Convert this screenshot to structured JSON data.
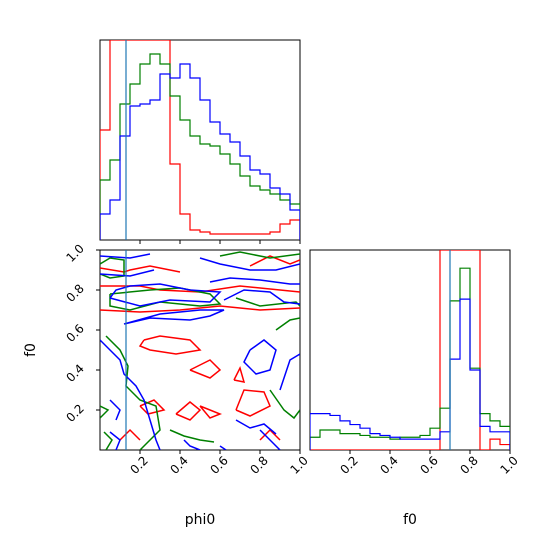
{
  "chart_data": {
    "type": "corner",
    "parameters": [
      "phi0",
      "f0"
    ],
    "colors": [
      "#ff0000",
      "#008000",
      "#0000ff"
    ],
    "truth_color": "#1f77b4",
    "truths": {
      "phi0": 0.13,
      "f0": 0.7
    },
    "xlabel_phi0": "phi0",
    "xlabel_f0": "f0",
    "ylabel_f0": "f0",
    "range_phi0": [
      0,
      1
    ],
    "range_f0": [
      0,
      1
    ],
    "ticks_phi0": [
      0.2,
      0.4,
      0.6,
      0.8,
      1.0
    ],
    "tick_labels_phi0": [
      "0.2",
      "0.4",
      "0.6",
      "0.8",
      "1.0"
    ],
    "ticks_f0": [
      0.2,
      0.4,
      0.6,
      0.8,
      1.0
    ],
    "tick_labels_f0": [
      "0.2",
      "0.4",
      "0.6",
      "0.8",
      "1.0"
    ],
    "hist_phi0": {
      "bin_edges": [
        0,
        0.05,
        0.1,
        0.15,
        0.2,
        0.25,
        0.3,
        0.35,
        0.4,
        0.45,
        0.5,
        0.55,
        0.6,
        0.65,
        0.7,
        0.75,
        0.8,
        0.85,
        0.9,
        0.95,
        1.0
      ],
      "ylim": [
        0,
        1
      ],
      "series": [
        {
          "values": [
            0.55,
            1.0,
            1.0,
            1.0,
            1.0,
            1.0,
            1.0,
            0.38,
            0.13,
            0.05,
            0.04,
            0.03,
            0.03,
            0.03,
            0.03,
            0.03,
            0.03,
            0.04,
            0.08,
            0.1
          ]
        },
        {
          "values": [
            0.3,
            0.4,
            0.68,
            0.78,
            0.88,
            0.93,
            0.88,
            0.72,
            0.6,
            0.52,
            0.48,
            0.47,
            0.43,
            0.38,
            0.32,
            0.27,
            0.25,
            0.23,
            0.2,
            0.18
          ]
        },
        {
          "values": [
            0.13,
            0.2,
            0.52,
            0.67,
            0.68,
            0.7,
            0.83,
            0.81,
            0.88,
            0.81,
            0.7,
            0.59,
            0.53,
            0.49,
            0.42,
            0.35,
            0.33,
            0.26,
            0.23,
            0.15
          ]
        }
      ]
    },
    "hist_f0": {
      "bin_edges": [
        0,
        0.05,
        0.1,
        0.15,
        0.2,
        0.25,
        0.3,
        0.35,
        0.4,
        0.45,
        0.5,
        0.55,
        0.6,
        0.65,
        0.7,
        0.75,
        0.8,
        0.85,
        0.9,
        0.95,
        1.0
      ],
      "ylim": [
        0,
        1.1
      ],
      "series": [
        {
          "values": [
            0.0,
            0.0,
            0.0,
            0.0,
            0.0,
            0.0,
            0.0,
            0.0,
            0.0,
            0.0,
            0.0,
            0.0,
            0.0,
            1.1,
            1.1,
            1.1,
            1.1,
            0.0,
            0.06,
            0.03
          ]
        },
        {
          "values": [
            0.07,
            0.11,
            0.11,
            0.09,
            0.09,
            0.08,
            0.07,
            0.07,
            0.06,
            0.07,
            0.07,
            0.08,
            0.12,
            0.23,
            0.82,
            1.0,
            0.45,
            0.2,
            0.16,
            0.13
          ]
        },
        {
          "values": [
            0.2,
            0.2,
            0.19,
            0.16,
            0.14,
            0.12,
            0.09,
            0.08,
            0.07,
            0.06,
            0.06,
            0.06,
            0.06,
            0.1,
            0.5,
            0.83,
            0.44,
            0.13,
            0.1,
            0.1
          ]
        }
      ]
    },
    "contours_f0_vs_phi0": [
      {
        "series_index": 0,
        "lines": [
          [
            [
              0.0,
              0.91
            ],
            [
              0.12,
              0.89
            ],
            [
              0.15,
              0.9
            ],
            [
              0.25,
              0.92
            ],
            [
              0.35,
              0.9
            ],
            [
              0.4,
              0.89
            ]
          ],
          [
            [
              0.0,
              0.82
            ],
            [
              0.2,
              0.82
            ],
            [
              0.3,
              0.8
            ],
            [
              0.5,
              0.79
            ],
            [
              0.7,
              0.82
            ],
            [
              0.9,
              0.8
            ],
            [
              1.0,
              0.79
            ]
          ],
          [
            [
              0.0,
              0.7
            ],
            [
              0.2,
              0.69
            ],
            [
              0.4,
              0.7
            ],
            [
              0.6,
              0.72
            ],
            [
              0.8,
              0.7
            ],
            [
              1.0,
              0.71
            ]
          ],
          [
            [
              0.22,
              0.55
            ],
            [
              0.3,
              0.57
            ],
            [
              0.45,
              0.55
            ],
            [
              0.5,
              0.5
            ],
            [
              0.38,
              0.48
            ],
            [
              0.25,
              0.5
            ],
            [
              0.2,
              0.52
            ],
            [
              0.22,
              0.55
            ]
          ],
          [
            [
              0.45,
              0.4
            ],
            [
              0.55,
              0.45
            ],
            [
              0.6,
              0.4
            ],
            [
              0.55,
              0.36
            ],
            [
              0.45,
              0.4
            ]
          ],
          [
            [
              0.67,
              0.35
            ],
            [
              0.7,
              0.41
            ],
            [
              0.72,
              0.34
            ],
            [
              0.67,
              0.35
            ]
          ],
          [
            [
              0.68,
              0.2
            ],
            [
              0.72,
              0.3
            ],
            [
              0.82,
              0.29
            ],
            [
              0.85,
              0.22
            ],
            [
              0.75,
              0.17
            ],
            [
              0.68,
              0.2
            ]
          ],
          [
            [
              0.75,
              0.92
            ],
            [
              0.85,
              0.97
            ],
            [
              0.95,
              0.93
            ],
            [
              1.0,
              0.95
            ]
          ],
          [
            [
              0.2,
              0.22
            ],
            [
              0.27,
              0.25
            ],
            [
              0.32,
              0.2
            ],
            [
              0.24,
              0.18
            ],
            [
              0.2,
              0.22
            ]
          ],
          [
            [
              0.38,
              0.18
            ],
            [
              0.45,
              0.24
            ],
            [
              0.5,
              0.2
            ],
            [
              0.45,
              0.15
            ],
            [
              0.38,
              0.18
            ]
          ],
          [
            [
              0.5,
              0.22
            ],
            [
              0.55,
              0.2
            ],
            [
              0.6,
              0.18
            ],
            [
              0.55,
              0.16
            ],
            [
              0.5,
              0.22
            ]
          ],
          [
            [
              0.1,
              0.05
            ],
            [
              0.15,
              0.1
            ],
            [
              0.2,
              0.05
            ]
          ],
          [
            [
              0.8,
              0.05
            ],
            [
              0.85,
              0.1
            ],
            [
              0.9,
              0.05
            ]
          ]
        ]
      },
      {
        "series_index": 1,
        "lines": [
          [
            [
              0.0,
              0.93
            ],
            [
              0.05,
              0.96
            ],
            [
              0.12,
              0.95
            ],
            [
              0.12,
              0.87
            ],
            [
              0.05,
              0.86
            ],
            [
              0.0,
              0.88
            ]
          ],
          [
            [
              0.6,
              0.97
            ],
            [
              0.7,
              0.99
            ],
            [
              0.85,
              0.96
            ],
            [
              1.0,
              0.98
            ]
          ],
          [
            [
              0.05,
              0.78
            ],
            [
              0.25,
              0.8
            ],
            [
              0.4,
              0.81
            ],
            [
              0.55,
              0.78
            ],
            [
              0.6,
              0.73
            ],
            [
              0.5,
              0.72
            ],
            [
              0.3,
              0.74
            ],
            [
              0.15,
              0.7
            ],
            [
              0.05,
              0.72
            ],
            [
              0.05,
              0.78
            ]
          ],
          [
            [
              0.68,
              0.76
            ],
            [
              0.8,
              0.72
            ],
            [
              0.98,
              0.74
            ],
            [
              1.0,
              0.72
            ]
          ],
          [
            [
              0.03,
              0.57
            ],
            [
              0.1,
              0.5
            ],
            [
              0.14,
              0.42
            ],
            [
              0.13,
              0.32
            ],
            [
              0.2,
              0.25
            ],
            [
              0.28,
              0.22
            ],
            [
              0.3,
              0.1
            ],
            [
              0.25,
              0.05
            ],
            [
              0.2,
              0.0
            ]
          ],
          [
            [
              0.0,
              0.22
            ],
            [
              0.04,
              0.2
            ],
            [
              0.0,
              0.16
            ]
          ],
          [
            [
              0.02,
              0.09
            ],
            [
              0.06,
              0.05
            ],
            [
              0.03,
              0.0
            ]
          ],
          [
            [
              0.35,
              0.1
            ],
            [
              0.42,
              0.07
            ],
            [
              0.5,
              0.05
            ],
            [
              0.57,
              0.04
            ]
          ],
          [
            [
              0.88,
              0.6
            ],
            [
              0.95,
              0.65
            ],
            [
              1.0,
              0.66
            ]
          ],
          [
            [
              0.85,
              0.3
            ],
            [
              0.92,
              0.2
            ],
            [
              0.97,
              0.16
            ],
            [
              1.0,
              0.2
            ]
          ]
        ]
      },
      {
        "series_index": 2,
        "lines": [
          [
            [
              0.0,
              0.97
            ],
            [
              0.15,
              0.96
            ],
            [
              0.25,
              0.98
            ]
          ],
          [
            [
              0.0,
              0.88
            ],
            [
              0.15,
              0.87
            ],
            [
              0.27,
              0.9
            ]
          ],
          [
            [
              0.05,
              0.76
            ],
            [
              0.2,
              0.72
            ],
            [
              0.35,
              0.75
            ],
            [
              0.55,
              0.74
            ],
            [
              0.6,
              0.79
            ],
            [
              0.45,
              0.8
            ],
            [
              0.3,
              0.83
            ],
            [
              0.15,
              0.82
            ],
            [
              0.08,
              0.8
            ],
            [
              0.05,
              0.76
            ]
          ],
          [
            [
              0.12,
              0.63
            ],
            [
              0.25,
              0.66
            ],
            [
              0.45,
              0.65
            ],
            [
              0.55,
              0.67
            ],
            [
              0.62,
              0.7
            ],
            [
              0.5,
              0.7
            ],
            [
              0.3,
              0.68
            ],
            [
              0.12,
              0.63
            ]
          ],
          [
            [
              0.5,
              0.96
            ],
            [
              0.6,
              0.93
            ],
            [
              0.75,
              0.9
            ],
            [
              0.88,
              0.9
            ],
            [
              1.0,
              0.93
            ]
          ],
          [
            [
              0.55,
              0.84
            ],
            [
              0.65,
              0.86
            ],
            [
              0.8,
              0.85
            ],
            [
              0.95,
              0.83
            ],
            [
              1.0,
              0.83
            ]
          ],
          [
            [
              0.62,
              0.75
            ],
            [
              0.72,
              0.8
            ],
            [
              0.85,
              0.79
            ],
            [
              0.92,
              0.74
            ],
            [
              1.0,
              0.73
            ]
          ],
          [
            [
              0.0,
              0.55
            ],
            [
              0.05,
              0.5
            ],
            [
              0.1,
              0.45
            ],
            [
              0.12,
              0.38
            ],
            [
              0.18,
              0.32
            ],
            [
              0.22,
              0.25
            ],
            [
              0.25,
              0.15
            ],
            [
              0.28,
              0.05
            ],
            [
              0.3,
              0.0
            ]
          ],
          [
            [
              0.05,
              0.25
            ],
            [
              0.1,
              0.2
            ],
            [
              0.08,
              0.15
            ]
          ],
          [
            [
              0.05,
              0.09
            ],
            [
              0.1,
              0.05
            ],
            [
              0.08,
              0.0
            ]
          ],
          [
            [
              0.75,
              0.5
            ],
            [
              0.82,
              0.55
            ],
            [
              0.88,
              0.5
            ],
            [
              0.85,
              0.4
            ],
            [
              0.78,
              0.38
            ],
            [
              0.72,
              0.44
            ],
            [
              0.75,
              0.5
            ]
          ],
          [
            [
              0.68,
              0.15
            ],
            [
              0.75,
              0.11
            ],
            [
              0.82,
              0.13
            ],
            [
              0.88,
              0.08
            ]
          ],
          [
            [
              0.8,
              0.1
            ],
            [
              0.85,
              0.05
            ],
            [
              0.9,
              0.0
            ]
          ],
          [
            [
              0.42,
              0.05
            ],
            [
              0.45,
              0.02
            ],
            [
              0.5,
              0.0
            ]
          ],
          [
            [
              0.6,
              0.02
            ],
            [
              0.63,
              0.0
            ]
          ],
          [
            [
              0.9,
              0.3
            ],
            [
              0.95,
              0.45
            ],
            [
              1.0,
              0.48
            ]
          ]
        ]
      }
    ]
  }
}
